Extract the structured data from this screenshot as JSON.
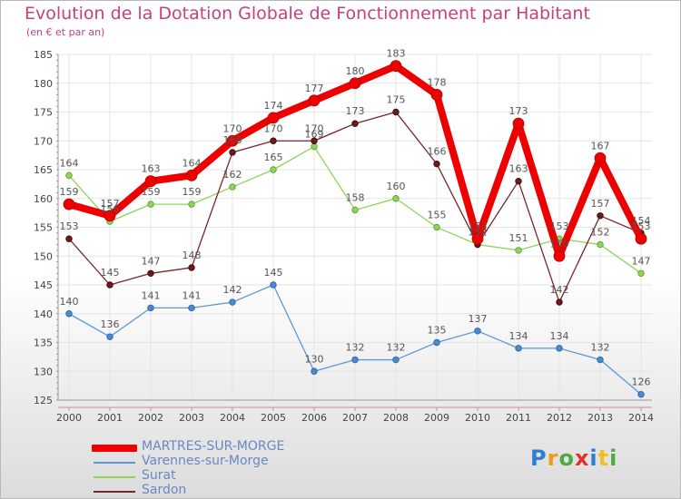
{
  "chart_data": {
    "type": "line",
    "title": "Evolution de la Dotation Globale de Fonctionnement par Habitant",
    "subtitle": "(en € et par an)",
    "xlabel": "",
    "ylabel": "",
    "categories": [
      "2000",
      "2001",
      "2002",
      "2003",
      "2004",
      "2005",
      "2006",
      "2007",
      "2008",
      "2009",
      "2010",
      "2011",
      "2012",
      "2013",
      "2014"
    ],
    "ylim": [
      125,
      185
    ],
    "yticks": [
      125,
      130,
      135,
      140,
      145,
      150,
      155,
      160,
      165,
      170,
      175,
      180,
      185
    ],
    "grid": true,
    "series": [
      {
        "name": "MARTRES-SUR-MORGE",
        "color": "#ee0000",
        "values": [
          159,
          157,
          163,
          164,
          170,
          174,
          177,
          180,
          183,
          178,
          153,
          173,
          150,
          167,
          153
        ]
      },
      {
        "name": "Varennes-sur-Morge",
        "color": "#5a9ad4",
        "values": [
          140,
          136,
          141,
          141,
          142,
          145,
          130,
          132,
          132,
          135,
          137,
          134,
          134,
          132,
          126
        ]
      },
      {
        "name": "Surat",
        "color": "#8fd45a",
        "values": [
          164,
          156,
          159,
          159,
          162,
          165,
          169,
          158,
          160,
          155,
          152,
          151,
          153,
          152,
          147
        ]
      },
      {
        "name": "Sardon",
        "color": "#7a2428",
        "values": [
          153,
          145,
          147,
          148,
          168,
          170,
          170,
          173,
          175,
          166,
          152,
          163,
          142,
          157,
          154
        ]
      }
    ]
  },
  "logo": {
    "letters": [
      {
        "ch": "P",
        "color": "#2f7fd0"
      },
      {
        "ch": "r",
        "color": "#f09a1a"
      },
      {
        "ch": "o",
        "color": "#50a840"
      },
      {
        "ch": "x",
        "color": "#e03030"
      },
      {
        "ch": "i",
        "color": "#2f7fd0"
      },
      {
        "ch": "t",
        "color": "#f0c020"
      },
      {
        "ch": "i",
        "color": "#50a840"
      }
    ]
  }
}
